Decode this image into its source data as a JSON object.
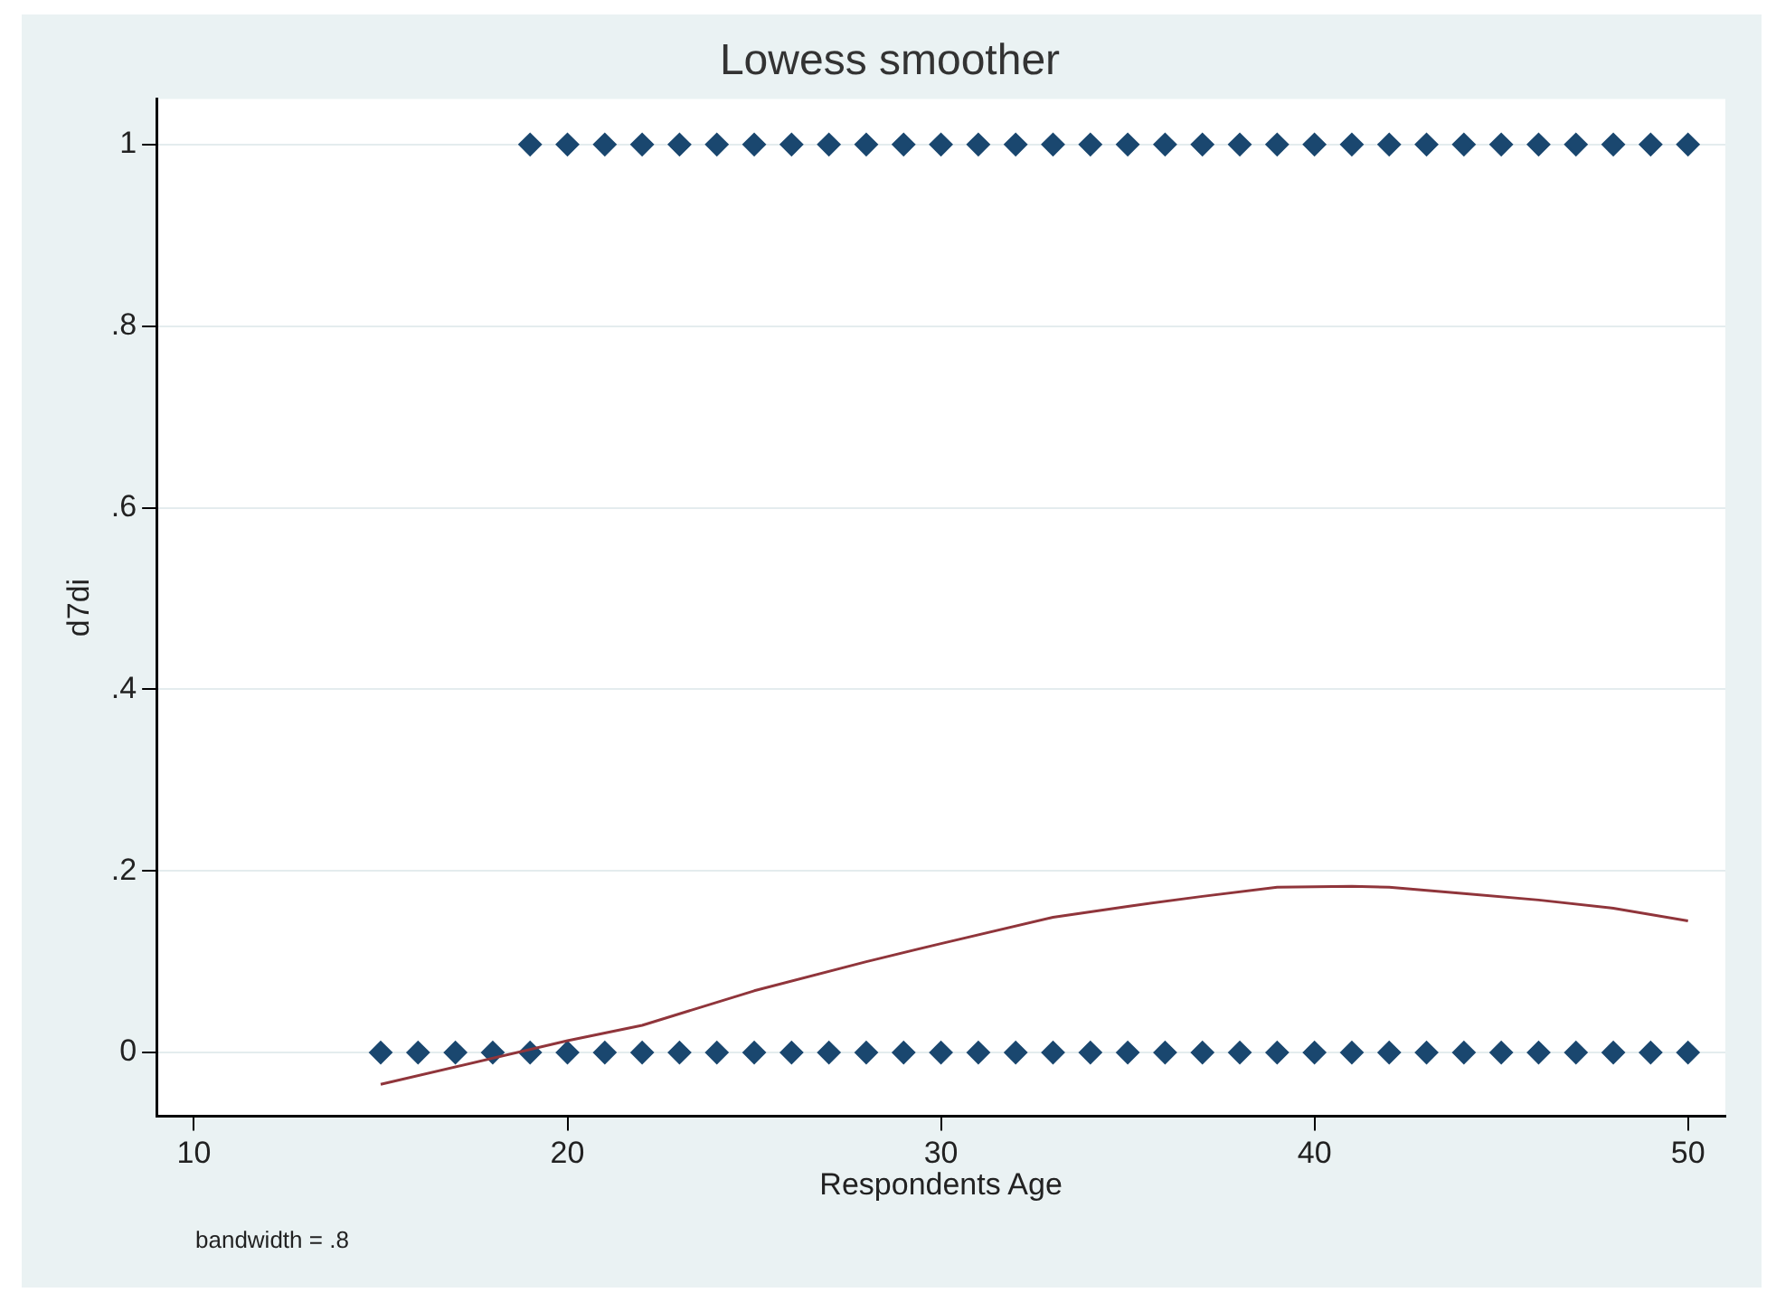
{
  "chart_data": {
    "type": "scatter",
    "title": "Lowess smoother",
    "xlabel": "Respondents Age",
    "ylabel": "d7di",
    "xlim": [
      9,
      51
    ],
    "xticks": [
      10,
      20,
      30,
      40,
      50
    ],
    "ylim": [
      -0.07,
      1.05
    ],
    "yticks": [
      {
        "value": 0,
        "label": "0"
      },
      {
        "value": 0.2,
        "label": ".2"
      },
      {
        "value": 0.4,
        "label": ".4"
      },
      {
        "value": 0.6,
        "label": ".6"
      },
      {
        "value": 0.8,
        "label": ".8"
      },
      {
        "value": 1,
        "label": "1"
      }
    ],
    "grid": "y",
    "legend": false,
    "marker": "diamond",
    "annotations": [
      "bandwidth = .8"
    ],
    "series": [
      {
        "color": "#1a476f",
        "x": [
          19,
          20,
          21,
          22,
          23,
          24,
          25,
          26,
          27,
          28,
          29,
          30,
          31,
          32,
          33,
          34,
          35,
          36,
          37,
          38,
          39,
          40,
          41,
          42,
          43,
          44,
          45,
          46,
          47,
          48,
          49,
          50
        ],
        "values": [
          1,
          1,
          1,
          1,
          1,
          1,
          1,
          1,
          1,
          1,
          1,
          1,
          1,
          1,
          1,
          1,
          1,
          1,
          1,
          1,
          1,
          1,
          1,
          1,
          1,
          1,
          1,
          1,
          1,
          1,
          1,
          1
        ]
      },
      {
        "color": "#1a476f",
        "x": [
          15,
          16,
          17,
          18,
          19,
          20,
          21,
          22,
          23,
          24,
          25,
          26,
          27,
          28,
          29,
          30,
          31,
          32,
          33,
          34,
          35,
          36,
          37,
          38,
          39,
          40,
          41,
          42,
          43,
          44,
          45,
          46,
          47,
          48,
          49,
          50
        ],
        "values": [
          0,
          0,
          0,
          0,
          0,
          0,
          0,
          0,
          0,
          0,
          0,
          0,
          0,
          0,
          0,
          0,
          0,
          0,
          0,
          0,
          0,
          0,
          0,
          0,
          0,
          0,
          0,
          0,
          0,
          0,
          0,
          0,
          0,
          0,
          0,
          0
        ]
      },
      {
        "type": "line",
        "color": "#90353b",
        "marker": "none",
        "x": [
          15,
          20,
          22,
          25,
          28,
          30,
          33,
          35,
          37,
          39,
          41,
          42,
          44,
          46,
          48,
          50
        ],
        "values": [
          -0.035,
          0.013,
          0.03,
          0.068,
          0.1,
          0.12,
          0.149,
          0.161,
          0.172,
          0.182,
          0.183,
          0.182,
          0.175,
          0.168,
          0.159,
          0.145
        ]
      }
    ]
  }
}
